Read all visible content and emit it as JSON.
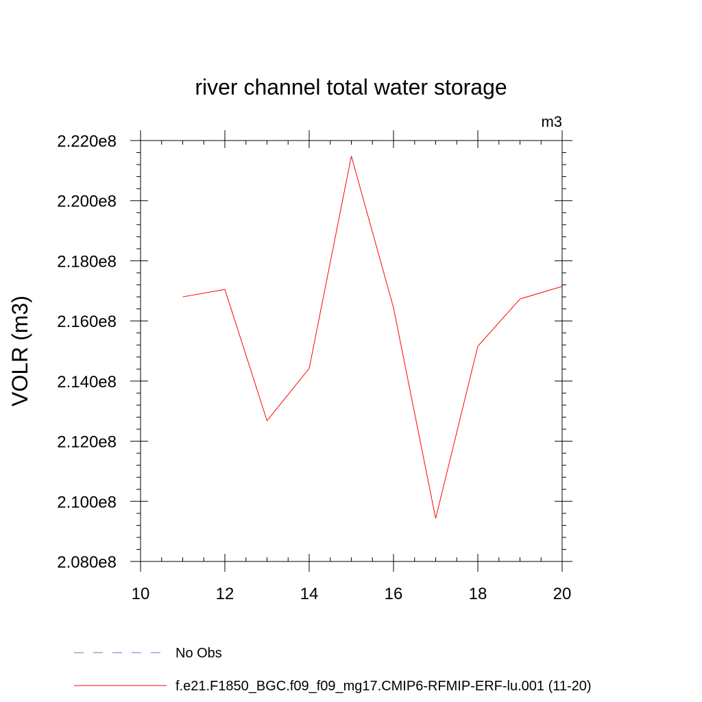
{
  "chart_data": {
    "type": "line",
    "title": "river channel total water storage",
    "units_label": "m3",
    "ylabel": "VOLR  (m3)",
    "xlabel": "",
    "xlim": [
      10,
      20
    ],
    "ylim": [
      208000000,
      222000000
    ],
    "xticks": [
      10,
      12,
      14,
      16,
      18,
      20
    ],
    "xtick_labels": [
      "10",
      "12",
      "14",
      "16",
      "18",
      "20"
    ],
    "yticks": [
      208000000,
      210000000,
      212000000,
      214000000,
      216000000,
      218000000,
      220000000,
      222000000
    ],
    "ytick_labels": [
      "2.080e8",
      "2.100e8",
      "2.120e8",
      "2.140e8",
      "2.160e8",
      "2.180e8",
      "2.200e8",
      "2.220e8"
    ],
    "grid": false,
    "legend_position": "bottom",
    "series": [
      {
        "name": "f.e21.F1850_BGC.f09_f09_mg17.CMIP6-RFMIP-ERF-lu.001 (11-20)",
        "color": "#ff0000",
        "style": "solid",
        "x": [
          11,
          12,
          13,
          14,
          15,
          16,
          17,
          18,
          19,
          20
        ],
        "values": [
          216800000,
          217050000,
          212680000,
          214420000,
          221480000,
          216440000,
          209430000,
          215160000,
          216730000,
          217150000
        ]
      }
    ],
    "legend": [
      {
        "label": "No Obs",
        "color": "#7b68c8",
        "style": "dashed"
      },
      {
        "label": "f.e21.F1850_BGC.f09_f09_mg17.CMIP6-RFMIP-ERF-lu.001 (11-20)",
        "color": "#ff0000",
        "style": "solid"
      }
    ]
  }
}
